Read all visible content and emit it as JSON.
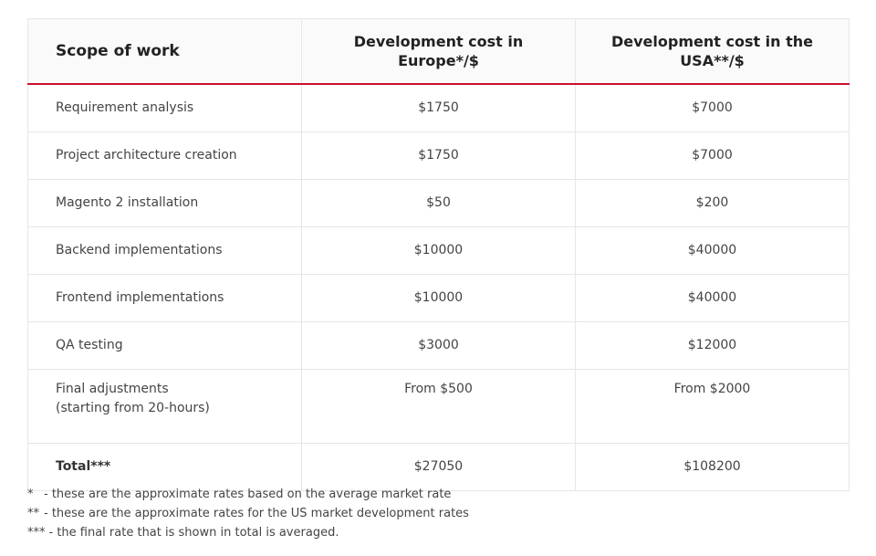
{
  "table": {
    "header": [
      "Scope of work",
      "Development cost in Europe*/$",
      "Development cost in the USA**/$"
    ],
    "rows": [
      [
        "Requirement analysis",
        "$1750",
        "$7000"
      ],
      [
        "Project architecture creation",
        "$1750",
        "$7000"
      ],
      [
        "Magento 2 installation",
        "$50",
        "$200"
      ],
      [
        "Backend implementations",
        "$10000",
        "$40000"
      ],
      [
        "Frontend implementations",
        "$10000",
        "$40000"
      ],
      [
        "QA testing",
        "$3000",
        "$12000"
      ],
      [
        "Final adjustments\n(starting from 20-hours)",
        "From $500",
        "From $2000"
      ],
      [
        "Total***",
        "$27050",
        "$108200"
      ]
    ]
  },
  "notes": [
    {
      "mark": "*",
      "text": "- these are the approximate rates based on the average market rate"
    },
    {
      "mark": "**",
      "text": "- these are the approximate rates for the US market development rates"
    },
    {
      "mark": "***",
      "text": "- the final rate that is shown in total is averaged."
    }
  ]
}
